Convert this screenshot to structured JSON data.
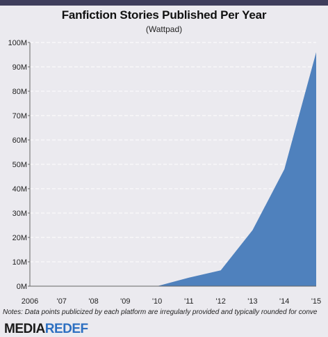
{
  "chart_data": {
    "type": "area",
    "title": "Fanfiction Stories Published Per Year",
    "subtitle": "(Wattpad)",
    "categories": [
      "2006",
      "'07",
      "'08",
      "'09",
      "'10",
      "'11",
      "'12",
      "'13",
      "'14",
      "'15"
    ],
    "values": [
      0,
      0,
      0,
      0,
      0,
      3.5,
      6.5,
      23,
      48,
      96
    ],
    "y_ticks": [
      "0M",
      "10M",
      "20M",
      "30M",
      "40M",
      "50M",
      "60M",
      "70M",
      "80M",
      "90M",
      "100M"
    ],
    "ylim": [
      0,
      100
    ],
    "y_unit": "M",
    "grid": "horizontal dashed",
    "color": "#4f81bd"
  },
  "note": "Notes: Data points publicized by each platform are irregularly provided and typically rounded for conve",
  "brand": {
    "part1": "MEDIA",
    "part2": "REDEF"
  }
}
